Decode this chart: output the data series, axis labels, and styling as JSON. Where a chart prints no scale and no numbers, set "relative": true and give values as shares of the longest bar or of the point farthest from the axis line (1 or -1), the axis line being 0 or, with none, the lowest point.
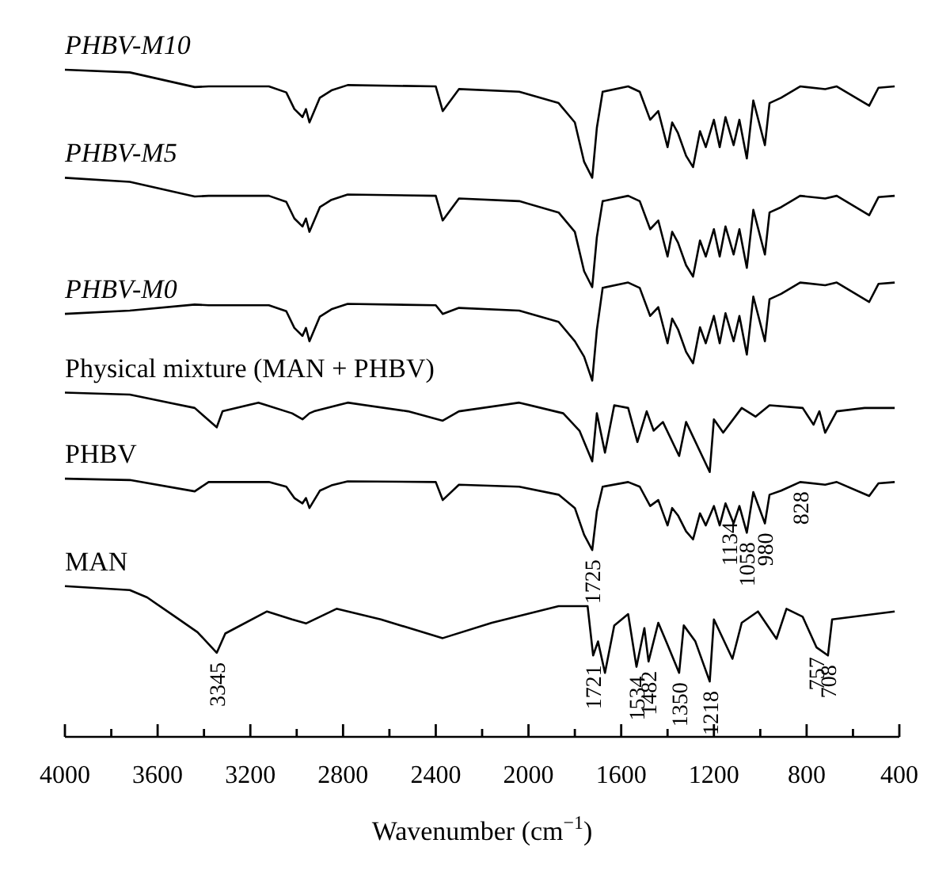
{
  "chart_data": {
    "type": "line",
    "relative": true,
    "xlabel": "Wavenumber (cm$^{−1}$)",
    "xlim": [
      4000,
      400
    ],
    "xticks": [
      4000,
      {
        "value": 3800,
        "label": null
      },
      3600,
      {
        "value": 3400,
        "label": null
      },
      3200,
      {
        "value": 3000,
        "label": null
      },
      2800,
      {
        "value": 2600,
        "label": null
      },
      2400,
      {
        "value": 2200,
        "label": null
      },
      2000,
      {
        "value": 1800,
        "label": null
      },
      1600,
      {
        "value": 1400,
        "label": null
      },
      1200,
      {
        "value": 1000,
        "label": null
      },
      800,
      {
        "value": 600,
        "label": null
      },
      400
    ],
    "x": [
      4000,
      3720,
      3440,
      3380,
      3120,
      3045,
      3010,
      2975,
      2960,
      2945,
      2900,
      2850,
      2780,
      2400,
      2370,
      2300,
      2040,
      1870,
      1800,
      1760,
      1725,
      1705,
      1680,
      1570,
      1520,
      1475,
      1440,
      1400,
      1380,
      1355,
      1320,
      1290,
      1260,
      1235,
      1200,
      1175,
      1150,
      1115,
      1090,
      1058,
      1030,
      980,
      960,
      910,
      828,
      720,
      670,
      530,
      490,
      420
    ],
    "series": [
      {
        "name": "PHBV-M10",
        "color": "#000000",
        "values": [
          1,
          0.996,
          0.974,
          0.975,
          0.975,
          0.966,
          0.941,
          0.929,
          0.941,
          0.921,
          0.958,
          0.969,
          0.977,
          0.975,
          0.938,
          0.971,
          0.967,
          0.95,
          0.921,
          0.862,
          0.838,
          0.913,
          0.967,
          0.975,
          0.967,
          0.925,
          0.938,
          0.884,
          0.921,
          0.905,
          0.871,
          0.854,
          0.908,
          0.884,
          0.925,
          0.884,
          0.929,
          0.887,
          0.925,
          0.867,
          0.954,
          0.887,
          0.95,
          0.958,
          0.975,
          0.971,
          0.975,
          0.946,
          0.973,
          0.975
        ]
      },
      {
        "name": "PHBV-M5",
        "color": "#000000",
        "values": [
          0.838,
          0.832,
          0.81,
          0.811,
          0.811,
          0.802,
          0.777,
          0.765,
          0.777,
          0.757,
          0.794,
          0.805,
          0.813,
          0.811,
          0.774,
          0.807,
          0.803,
          0.786,
          0.757,
          0.698,
          0.674,
          0.749,
          0.803,
          0.811,
          0.803,
          0.761,
          0.774,
          0.72,
          0.757,
          0.741,
          0.707,
          0.69,
          0.744,
          0.72,
          0.761,
          0.72,
          0.765,
          0.723,
          0.761,
          0.703,
          0.79,
          0.723,
          0.786,
          0.794,
          0.811,
          0.807,
          0.811,
          0.782,
          0.809,
          0.811
        ]
      },
      {
        "name": "PHBV-M0",
        "color": "#000000",
        "values": [
          0.634,
          0.639,
          0.648,
          0.647,
          0.647,
          0.638,
          0.613,
          0.601,
          0.613,
          0.593,
          0.63,
          0.641,
          0.649,
          0.647,
          0.634,
          0.643,
          0.639,
          0.622,
          0.593,
          0.57,
          0.534,
          0.61,
          0.673,
          0.681,
          0.673,
          0.631,
          0.644,
          0.59,
          0.627,
          0.611,
          0.577,
          0.56,
          0.614,
          0.59,
          0.631,
          0.59,
          0.635,
          0.593,
          0.631,
          0.573,
          0.66,
          0.593,
          0.656,
          0.664,
          0.681,
          0.677,
          0.681,
          0.652,
          0.679,
          0.681
        ]
      },
      {
        "name": "Physical mixture (MAN + PHBV)",
        "color": "#000000",
        "x": [
          4000,
          3720,
          3440,
          3345,
          3320,
          3165,
          3020,
          2975,
          2945,
          2925,
          2780,
          2520,
          2370,
          2300,
          2040,
          1850,
          1780,
          1725,
          1705,
          1670,
          1630,
          1570,
          1530,
          1490,
          1460,
          1420,
          1350,
          1320,
          1218,
          1200,
          1160,
          1080,
          1020,
          960,
          817,
          770,
          745,
          720,
          670,
          550,
          420
        ],
        "values": [
          0.516,
          0.513,
          0.493,
          0.464,
          0.488,
          0.501,
          0.485,
          0.476,
          0.485,
          0.488,
          0.501,
          0.488,
          0.474,
          0.488,
          0.501,
          0.485,
          0.459,
          0.413,
          0.485,
          0.426,
          0.497,
          0.493,
          0.442,
          0.488,
          0.459,
          0.472,
          0.421,
          0.472,
          0.397,
          0.476,
          0.456,
          0.493,
          0.48,
          0.497,
          0.493,
          0.468,
          0.488,
          0.456,
          0.488,
          0.493,
          0.493
        ]
      },
      {
        "name": "PHBV",
        "color": "#000000",
        "values": [
          0.387,
          0.385,
          0.368,
          0.382,
          0.382,
          0.375,
          0.358,
          0.35,
          0.358,
          0.343,
          0.369,
          0.377,
          0.383,
          0.382,
          0.355,
          0.378,
          0.375,
          0.363,
          0.343,
          0.303,
          0.28,
          0.338,
          0.375,
          0.382,
          0.375,
          0.346,
          0.355,
          0.317,
          0.343,
          0.332,
          0.308,
          0.296,
          0.335,
          0.317,
          0.346,
          0.317,
          0.35,
          0.32,
          0.346,
          0.306,
          0.367,
          0.32,
          0.363,
          0.369,
          0.382,
          0.378,
          0.382,
          0.361,
          0.38,
          0.382
        ]
      },
      {
        "name": "MAN",
        "color": "#000000",
        "x": [
          4000,
          3720,
          3645,
          3524,
          3428,
          3345,
          3308,
          3128,
          3020,
          2960,
          2828,
          2637,
          2370,
          2158,
          1870,
          1745,
          1721,
          1700,
          1670,
          1630,
          1570,
          1534,
          1500,
          1482,
          1440,
          1400,
          1350,
          1330,
          1280,
          1218,
          1200,
          1120,
          1080,
          1010,
          930,
          887,
          817,
          757,
          708,
          690,
          420
        ],
        "values": [
          0.226,
          0.22,
          0.209,
          0.18,
          0.157,
          0.126,
          0.155,
          0.188,
          0.176,
          0.17,
          0.192,
          0.176,
          0.148,
          0.171,
          0.196,
          0.196,
          0.122,
          0.143,
          0.096,
          0.167,
          0.184,
          0.105,
          0.163,
          0.113,
          0.171,
          0.138,
          0.096,
          0.167,
          0.143,
          0.083,
          0.176,
          0.117,
          0.171,
          0.188,
          0.147,
          0.192,
          0.18,
          0.134,
          0.122,
          0.176,
          0.188
        ]
      }
    ],
    "annotations": [
      {
        "text": "3345",
        "x": 3345,
        "y": 0.126
      },
      {
        "text": "1725",
        "x": 1725,
        "y": 0.28
      },
      {
        "text": "1134",
        "x": 1134,
        "y": 0.336
      },
      {
        "text": "1058",
        "x": 1058,
        "y": 0.306
      },
      {
        "text": "980",
        "x": 980,
        "y": 0.32
      },
      {
        "text": "828",
        "x": 828,
        "y": 0.382
      },
      {
        "text": "1721",
        "x": 1721,
        "y": 0.122
      },
      {
        "text": "1534",
        "x": 1534,
        "y": 0.105
      },
      {
        "text": "1482",
        "x": 1482,
        "y": 0.113
      },
      {
        "text": "1350",
        "x": 1350,
        "y": 0.096
      },
      {
        "text": "1218",
        "x": 1218,
        "y": 0.083
      },
      {
        "text": "757",
        "x": 757,
        "y": 0.134
      },
      {
        "text": "708",
        "x": 708,
        "y": 0.122
      }
    ]
  }
}
